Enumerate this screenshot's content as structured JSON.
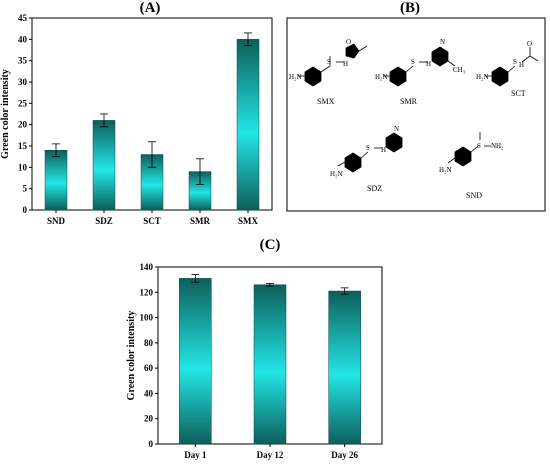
{
  "panels": {
    "a_label": "(A)",
    "b_label": "(B)",
    "c_label": "(C)"
  },
  "colors": {
    "bar_gradient": [
      "#0d5f5a",
      "#22e6e6",
      "#0d5f5a"
    ],
    "axis": "#000000"
  },
  "chart_data": [
    {
      "type": "bar",
      "panel": "(A)",
      "categories": [
        "SND",
        "SDZ",
        "SCT",
        "SMR",
        "SMX"
      ],
      "values": [
        14,
        21,
        13,
        9,
        40
      ],
      "errors": [
        1.5,
        1.5,
        3,
        3,
        1.5
      ],
      "ylabel": "Green color intensity",
      "xlabel": "",
      "ylim": [
        0,
        45
      ],
      "yticks": [
        0,
        5,
        10,
        15,
        20,
        25,
        30,
        35,
        40,
        45
      ],
      "grid": false
    },
    {
      "type": "bar",
      "panel": "(C)",
      "categories": [
        "Day 1",
        "Day 12",
        "Day 26"
      ],
      "values": [
        131,
        126,
        121
      ],
      "errors": [
        3,
        1,
        2.5
      ],
      "ylabel": "Green color intensity",
      "xlabel": "",
      "ylim": [
        0,
        140
      ],
      "yticks": [
        0,
        20,
        40,
        60,
        80,
        100,
        120,
        140
      ],
      "grid": false
    }
  ],
  "structures": {
    "names": [
      "SMX",
      "SMR",
      "SCT",
      "SDZ",
      "SND"
    ],
    "atoms": {
      "h2n": "H₂N",
      "nh": "H",
      "n": "N",
      "s": "S",
      "o": "O",
      "ch3": "CH₃",
      "nh2": "NH₂"
    }
  }
}
